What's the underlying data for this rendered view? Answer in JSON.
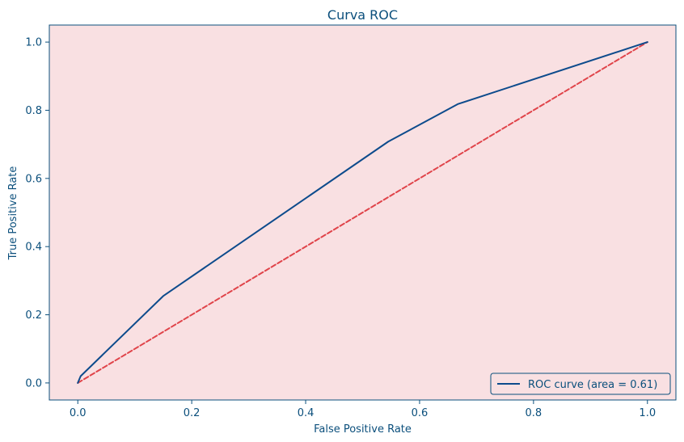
{
  "chart_data": {
    "type": "line",
    "title": "Curva ROC",
    "xlabel": "False Positive Rate",
    "ylabel": "True Positive Rate",
    "xlim": [
      -0.05,
      1.05
    ],
    "ylim": [
      -0.05,
      1.05
    ],
    "xticks": [
      0.0,
      0.2,
      0.4,
      0.6,
      0.8,
      1.0
    ],
    "yticks": [
      0.0,
      0.2,
      0.4,
      0.6,
      0.8,
      1.0
    ],
    "xtick_labels": [
      "0.0",
      "0.2",
      "0.4",
      "0.6",
      "0.8",
      "1.0"
    ],
    "ytick_labels": [
      "0.0",
      "0.2",
      "0.4",
      "0.6",
      "0.8",
      "1.0"
    ],
    "grid": false,
    "legend_position": "lower-right",
    "series": [
      {
        "name": "ROC curve (area = 0.61)",
        "color": "#0d4b8c",
        "style": "solid",
        "x": [
          0.0,
          0.005,
          0.15,
          0.545,
          0.667,
          1.0
        ],
        "y": [
          0.0,
          0.02,
          0.255,
          0.708,
          0.818,
          1.0
        ]
      },
      {
        "color": "#e0444a",
        "style": "dashed",
        "x": [
          0.0,
          1.0
        ],
        "y": [
          0.0,
          1.0
        ]
      }
    ],
    "colors": {
      "plot_background": "#f9e0e2",
      "axis": "#0b4f7c",
      "text": "#0b4f7c"
    }
  }
}
